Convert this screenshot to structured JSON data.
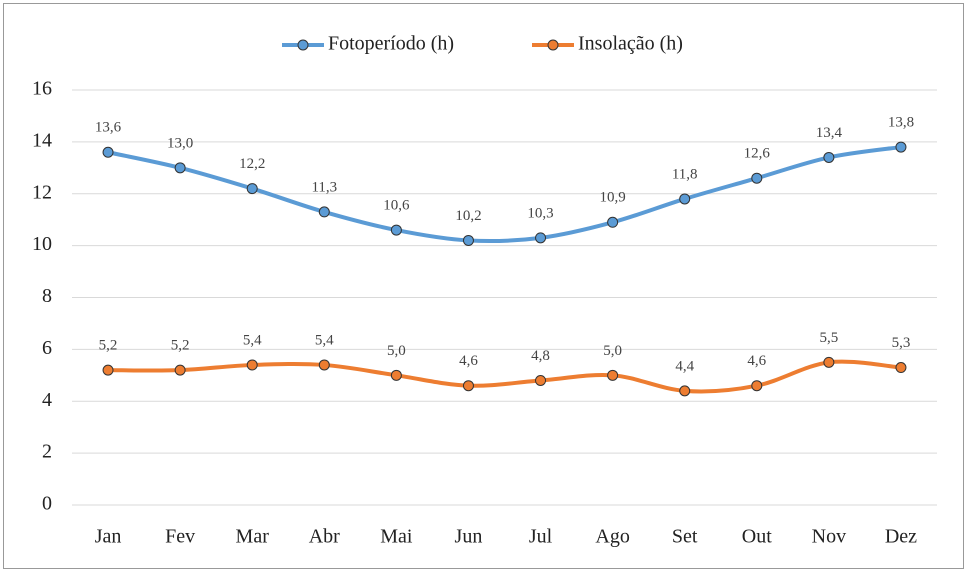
{
  "chart_data": {
    "type": "line",
    "categories": [
      "Jan",
      "Fev",
      "Mar",
      "Abr",
      "Mai",
      "Jun",
      "Jul",
      "Ago",
      "Set",
      "Out",
      "Nov",
      "Dez"
    ],
    "series": [
      {
        "name": "Fotoperíodo (h)",
        "color": "#5b9bd5",
        "values": [
          13.6,
          13.0,
          12.2,
          11.3,
          10.6,
          10.2,
          10.3,
          10.9,
          11.8,
          12.6,
          13.4,
          13.8
        ],
        "value_labels": [
          "13,6",
          "13,0",
          "12,2",
          "11,3",
          "10,6",
          "10,2",
          "10,3",
          "10,9",
          "11,8",
          "12,6",
          "13,4",
          "13,8"
        ]
      },
      {
        "name": "Insolação (h)",
        "color": "#ed7d31",
        "values": [
          5.2,
          5.2,
          5.4,
          5.4,
          5.0,
          4.6,
          4.8,
          5.0,
          4.4,
          4.6,
          5.5,
          5.3
        ],
        "value_labels": [
          "5,2",
          "5,2",
          "5,4",
          "5,4",
          "5,0",
          "4,6",
          "4,8",
          "5,0",
          "4,4",
          "4,6",
          "5,5",
          "5,3"
        ]
      }
    ],
    "ylim": [
      0,
      16
    ],
    "yticks": [
      0,
      2,
      4,
      6,
      8,
      10,
      12,
      14,
      16
    ],
    "grid": true,
    "smooth": true,
    "legend": "top"
  }
}
